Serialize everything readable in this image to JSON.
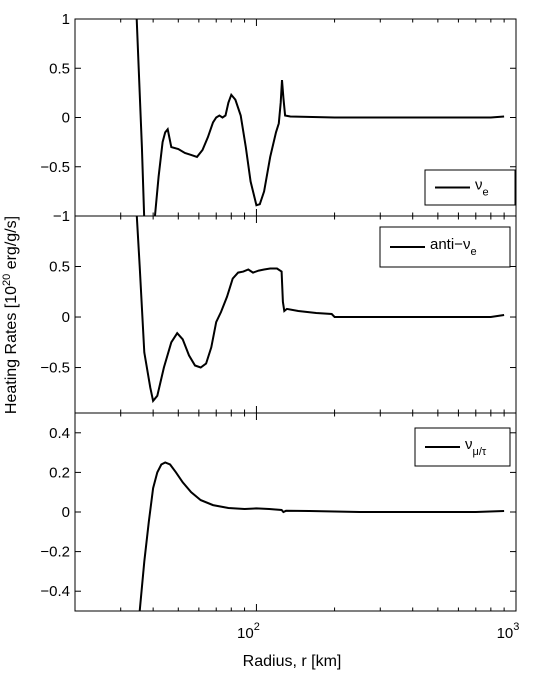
{
  "chart_data": {
    "type": "line",
    "xlabel": "Radius, r [km]",
    "ylabel": "Heating Rates [10",
    "ylabel_sup": "20",
    "ylabel_tail": " erg/g/s]",
    "x_scale": "log",
    "xlim": [
      20,
      1000
    ],
    "x_ticks": [
      {
        "value": 100,
        "base": "10",
        "exp": "2"
      },
      {
        "value": 1000,
        "base": "10",
        "exp": "3"
      }
    ],
    "line_color": "#000000",
    "grid": false,
    "panels": [
      {
        "name": "nu_e",
        "ylim": [
          -1,
          1
        ],
        "yticks": [
          1,
          0.5,
          0,
          -0.5,
          -1
        ],
        "ytick_labels": [
          "1",
          "0.5",
          "0",
          "−0.5",
          "−1"
        ],
        "legend": {
          "base": "ν",
          "sub": "e",
          "placement": "lower-right"
        },
        "points": [
          [
            34.5,
            1.05
          ],
          [
            35.2,
            0.5
          ],
          [
            36.2,
            -0.3
          ],
          [
            37,
            -1.05
          ],
          [
            40.5,
            -1.05
          ],
          [
            42,
            -0.6
          ],
          [
            43.5,
            -0.25
          ],
          [
            44.5,
            -0.15
          ],
          [
            45.5,
            -0.12
          ],
          [
            47,
            -0.3
          ],
          [
            50,
            -0.32
          ],
          [
            53,
            -0.36
          ],
          [
            56,
            -0.38
          ],
          [
            59,
            -0.4
          ],
          [
            62,
            -0.33
          ],
          [
            65,
            -0.2
          ],
          [
            68,
            -0.05
          ],
          [
            70,
            0.0
          ],
          [
            72,
            0.02
          ],
          [
            74,
            0.0
          ],
          [
            76,
            0.02
          ],
          [
            78,
            0.15
          ],
          [
            80,
            0.23
          ],
          [
            83,
            0.18
          ],
          [
            87,
            0.02
          ],
          [
            91,
            -0.3
          ],
          [
            95,
            -0.65
          ],
          [
            100,
            -0.89
          ],
          [
            103,
            -0.88
          ],
          [
            107,
            -0.75
          ],
          [
            113,
            -0.4
          ],
          [
            119,
            -0.15
          ],
          [
            122,
            -0.06
          ],
          [
            124,
            0.15
          ],
          [
            125.5,
            0.38
          ],
          [
            127,
            0.2
          ],
          [
            129,
            0.02
          ],
          [
            135,
            0.01
          ],
          [
            200,
            0.0
          ],
          [
            400,
            0.0
          ],
          [
            800,
            0.0
          ],
          [
            900,
            0.01
          ]
        ]
      },
      {
        "name": "anti_nu_e",
        "ylim": [
          -0.95,
          1
        ],
        "yticks": [
          0.5,
          0,
          -0.5
        ],
        "ytick_labels": [
          "0.5",
          "0",
          "−0.5"
        ],
        "legend": {
          "base": "anti−ν",
          "sub": "e",
          "placement": "upper-right"
        },
        "points": [
          [
            34.5,
            1.05
          ],
          [
            35.5,
            0.5
          ],
          [
            37,
            -0.35
          ],
          [
            39,
            -0.7
          ],
          [
            40,
            -0.83
          ],
          [
            41.5,
            -0.78
          ],
          [
            44,
            -0.5
          ],
          [
            47,
            -0.25
          ],
          [
            49.5,
            -0.16
          ],
          [
            52,
            -0.22
          ],
          [
            55,
            -0.38
          ],
          [
            58,
            -0.48
          ],
          [
            61,
            -0.5
          ],
          [
            64,
            -0.46
          ],
          [
            67,
            -0.3
          ],
          [
            70,
            -0.05
          ],
          [
            73,
            0.05
          ],
          [
            77,
            0.2
          ],
          [
            81,
            0.38
          ],
          [
            85,
            0.44
          ],
          [
            89,
            0.45
          ],
          [
            93,
            0.47
          ],
          [
            97,
            0.44
          ],
          [
            102,
            0.46
          ],
          [
            107,
            0.47
          ],
          [
            113,
            0.48
          ],
          [
            120,
            0.48
          ],
          [
            125,
            0.45
          ],
          [
            126.5,
            0.15
          ],
          [
            128,
            0.06
          ],
          [
            131,
            0.08
          ],
          [
            145,
            0.06
          ],
          [
            170,
            0.04
          ],
          [
            195,
            0.03
          ],
          [
            200,
            0.0
          ],
          [
            300,
            0.0
          ],
          [
            500,
            0.0
          ],
          [
            800,
            0.0
          ],
          [
            900,
            0.02
          ]
        ]
      },
      {
        "name": "nu_mu_tau",
        "ylim": [
          -0.5,
          0.5
        ],
        "yticks": [
          0.4,
          0.2,
          0,
          -0.2,
          -0.4
        ],
        "ytick_labels": [
          "0.4",
          "0.2",
          "0",
          "−0.2",
          "−0.4"
        ],
        "legend": {
          "base": "ν",
          "sub": "μ/τ",
          "placement": "upper-right"
        },
        "points": [
          [
            35.5,
            -0.5
          ],
          [
            37,
            -0.25
          ],
          [
            38.5,
            -0.05
          ],
          [
            40,
            0.12
          ],
          [
            41.5,
            0.2
          ],
          [
            43,
            0.24
          ],
          [
            44.5,
            0.25
          ],
          [
            46.5,
            0.24
          ],
          [
            49,
            0.2
          ],
          [
            52,
            0.15
          ],
          [
            56,
            0.1
          ],
          [
            61,
            0.06
          ],
          [
            68,
            0.035
          ],
          [
            78,
            0.02
          ],
          [
            90,
            0.015
          ],
          [
            100,
            0.018
          ],
          [
            112,
            0.015
          ],
          [
            125,
            0.01
          ],
          [
            127,
            0.0
          ],
          [
            130,
            0.006
          ],
          [
            160,
            0.005
          ],
          [
            250,
            0.0
          ],
          [
            400,
            0.0
          ],
          [
            700,
            0.0
          ],
          [
            900,
            0.005
          ]
        ]
      }
    ]
  }
}
